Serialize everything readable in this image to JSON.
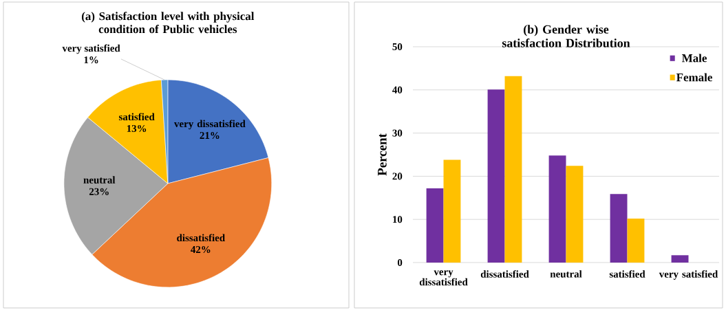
{
  "chart_data": [
    {
      "type": "pie",
      "title": "(a) Satisfaction level with physical condition of Public vehicles",
      "categories": [
        "very dissatisfied",
        "dissatisfied",
        "neutral",
        "satisfied",
        "very satisfied"
      ],
      "values": [
        21,
        42,
        23,
        13,
        1
      ],
      "value_labels": [
        "21%",
        "42%",
        "23%",
        "13%",
        "1%"
      ],
      "colors": [
        "#4472c4",
        "#ed7d31",
        "#a5a5a5",
        "#ffc000",
        "#5b9bd5"
      ]
    },
    {
      "type": "bar",
      "title": "(b) Gender wise satisfaction Distribution",
      "ylabel": "Percent",
      "categories": [
        "very dissatisfied",
        "dissatisfied",
        "neutral",
        "satisfied",
        "very satisfied"
      ],
      "series": [
        {
          "name": "Male",
          "color": "#7030a0",
          "values": [
            17.2,
            40.1,
            24.8,
            15.9,
            1.7
          ]
        },
        {
          "name": "Female",
          "color": "#ffc000",
          "values": [
            23.8,
            43.2,
            22.4,
            10.2,
            null
          ]
        }
      ],
      "ylim": [
        0,
        50
      ],
      "yticks": [
        0,
        10,
        20,
        30,
        40,
        50
      ],
      "grid": "y",
      "legend": "top right"
    }
  ]
}
